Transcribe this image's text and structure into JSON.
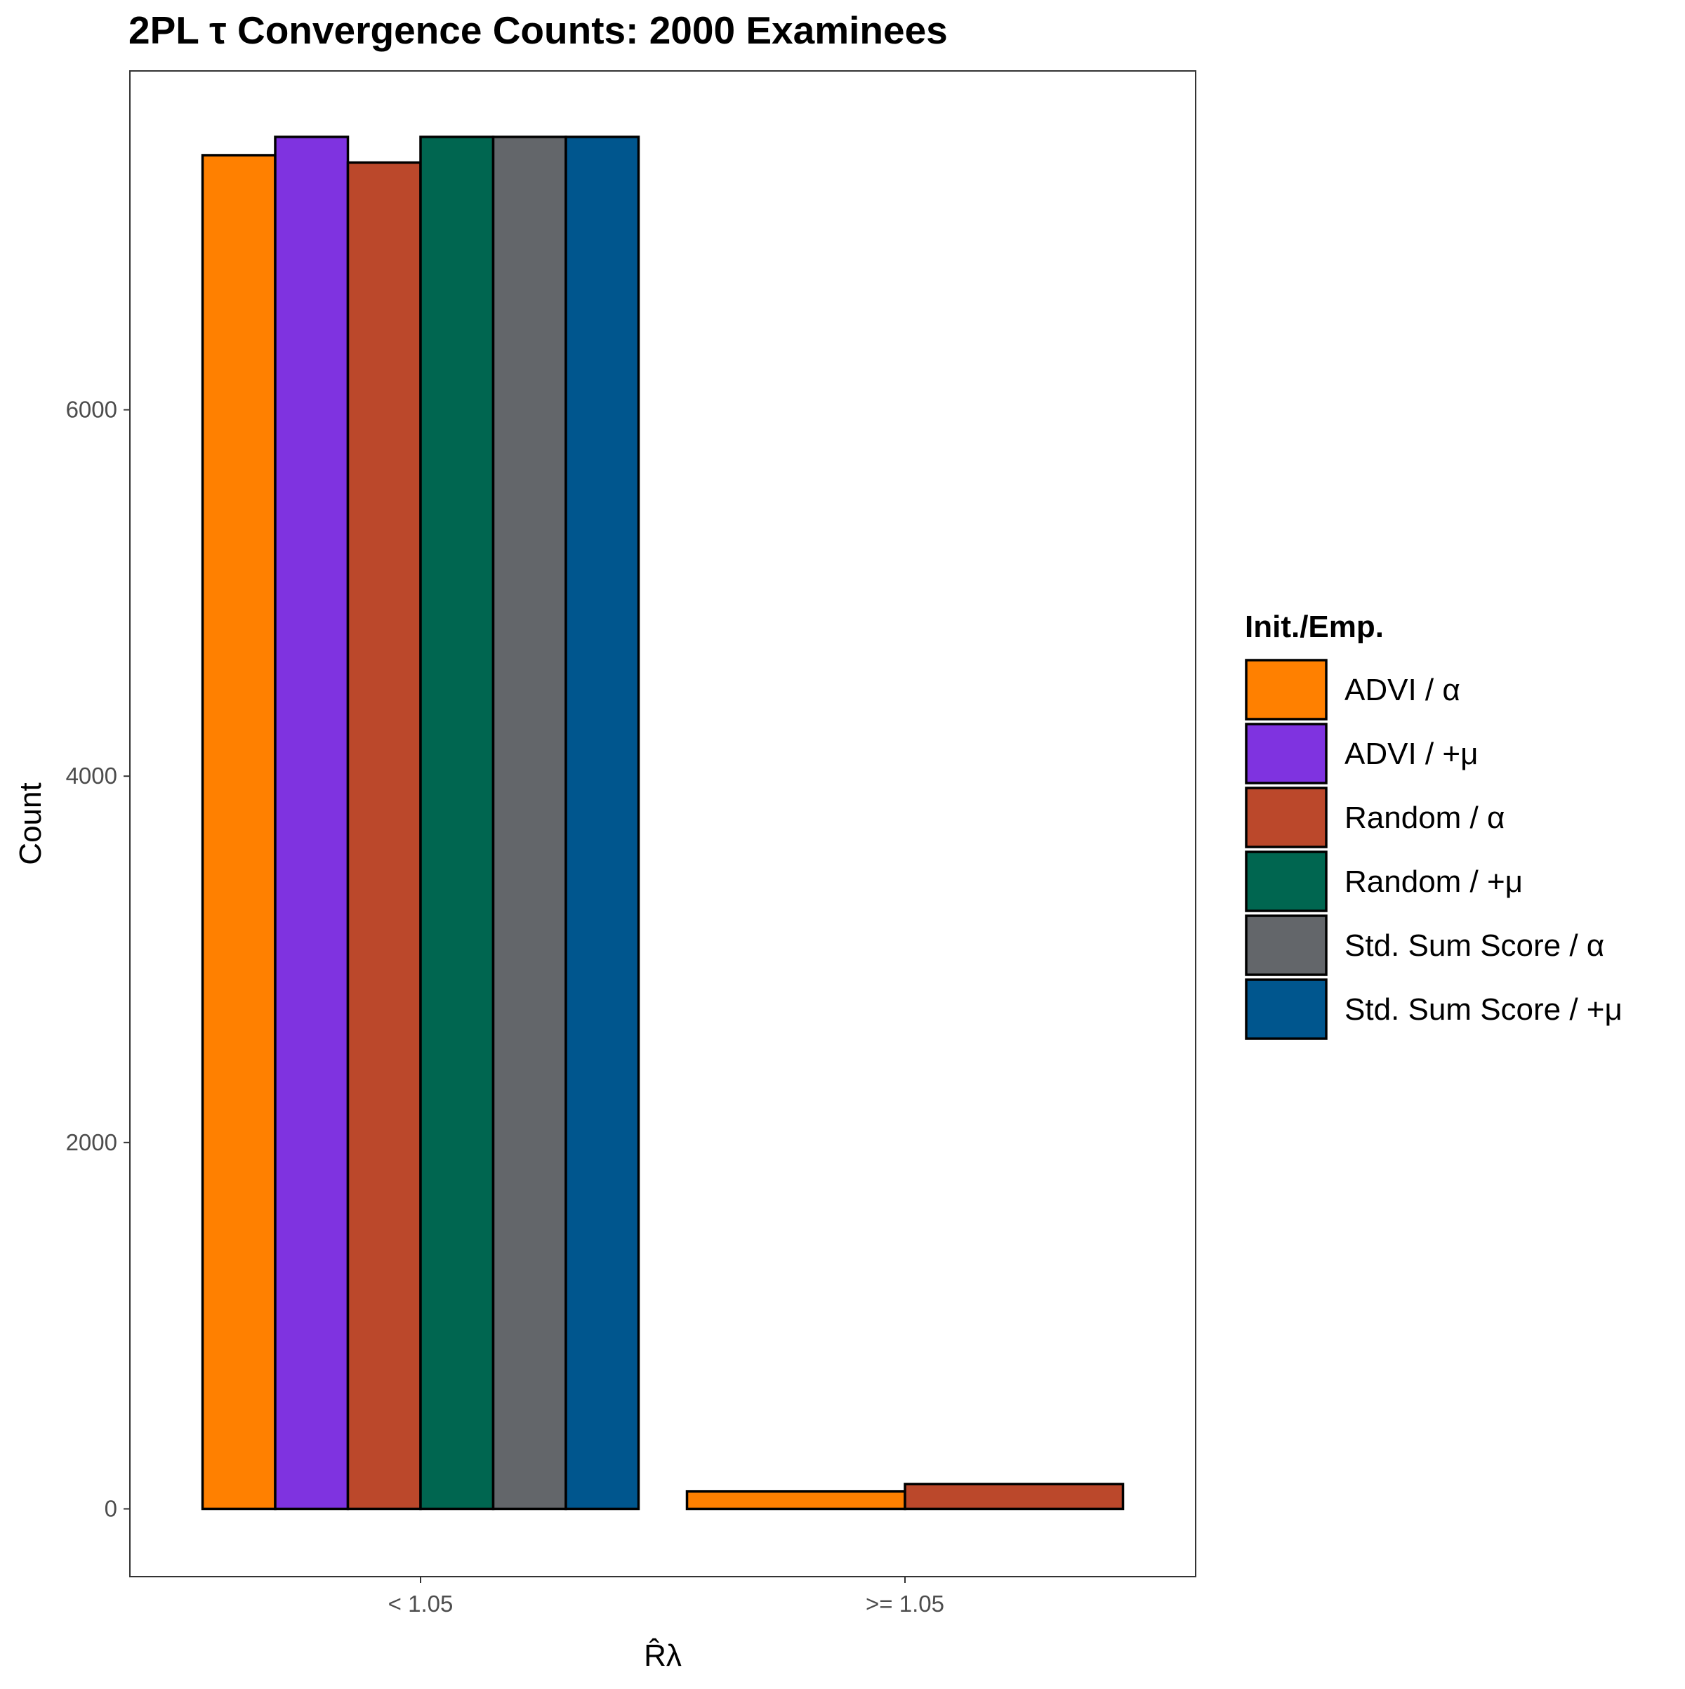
{
  "chart_data": {
    "type": "bar",
    "title": "2PL τ Convergence Counts: 2000 Examinees",
    "xlabel": "R̂λ",
    "ylabel": "Count",
    "categories": [
      "< 1.05",
      ">= 1.05"
    ],
    "yticks": [
      0,
      2000,
      4000,
      6000
    ],
    "ylim": [
      -370,
      7850
    ],
    "grid": false,
    "legend": {
      "title": "Init./Emp.",
      "position": "right"
    },
    "series": [
      {
        "name": "ADVI / α",
        "color": "#FF8000",
        "values": [
          7390,
          95
        ]
      },
      {
        "name": "ADVI / +μ",
        "color": "#7F33E0",
        "values": [
          7490,
          null
        ]
      },
      {
        "name": "Random / α",
        "color": "#BB482B",
        "values": [
          7350,
          135
        ]
      },
      {
        "name": "Random / +μ",
        "color": "#006650",
        "values": [
          7490,
          null
        ]
      },
      {
        "name": "Std. Sum Score / α",
        "color": "#63666A",
        "values": [
          7490,
          null
        ]
      },
      {
        "name": "Std. Sum Score / +μ",
        "color": "#00568E",
        "values": [
          7490,
          null
        ]
      }
    ]
  }
}
